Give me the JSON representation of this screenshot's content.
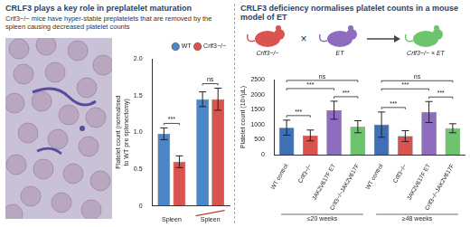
{
  "panels": [
    {
      "title": "CRLF3 plays a key role in preplatelet maturation",
      "subtitle": "Crlf3−/− mice have hyper-stable preplatelets that are removed by the spleen causing decreased platelet counts"
    },
    {
      "title": "CRLF3 deficiency normalises platelet counts in a mouse model of ET",
      "diagram": {
        "parents": [
          "Crlf3−/−",
          "ET"
        ],
        "cross": "×",
        "offspring": "Crlf3−/− × ET"
      }
    }
  ],
  "chart_data": [
    {
      "type": "bar",
      "categories": [
        "Spleen",
        "Spleen"
      ],
      "y_label": [
        "Platelet count (normalised",
        "to WT pre splenectomy)"
      ],
      "ylim": [
        0,
        2
      ],
      "yticks": [
        0,
        0.5,
        {
          "value": 1,
          "label": "1.0"
        },
        1.5,
        {
          "value": 2,
          "label": "2.0"
        }
      ],
      "grid": false,
      "legend": "top-right",
      "series": [
        {
          "name": "WT",
          "color": "#4a86c8",
          "values": [
            0.98,
            1.45
          ],
          "errors": [
            0.08,
            0.1
          ]
        },
        {
          "name": "Crlf3−/−",
          "color": "#d9534f",
          "values": [
            0.6,
            1.45
          ],
          "errors": [
            0.08,
            0.15
          ]
        }
      ],
      "annotations": [
        {
          "category": 0,
          "text": "***"
        },
        {
          "category": 1,
          "text": "ns"
        }
      ]
    },
    {
      "type": "bar",
      "categories": [
        "WT control",
        "Crlf3−/−",
        "JAK2V617F ET",
        "Crlf3−/−JAK2V617F",
        "WT control",
        "Crlf3−/−",
        "JAK2V617F ET",
        "Crlf3−/−JAK2V617F"
      ],
      "y_label": "Platelet count (10³/μL)",
      "ylim": [
        0,
        2500
      ],
      "yticks": [
        0,
        500,
        1000,
        1500,
        2000,
        2500
      ],
      "grid": false,
      "colors": [
        "#3f6fb5",
        "#d9534f",
        "#8e6cc0",
        "#6cc46c",
        "#3f6fb5",
        "#d9534f",
        "#8e6cc0",
        "#6cc46c"
      ],
      "values": [
        900,
        640,
        1480,
        930,
        1000,
        620,
        1420,
        880
      ],
      "errors": [
        250,
        180,
        300,
        200,
        420,
        180,
        350,
        150
      ],
      "groups": [
        {
          "label": "≤20 weeks",
          "from": 0,
          "to": 3
        },
        {
          "label": "≥48 weeks",
          "from": 4,
          "to": 7
        }
      ],
      "annotations": [
        {
          "from": 0,
          "to": 1,
          "text": "***"
        },
        {
          "from": 2,
          "to": 3,
          "text": "***"
        },
        {
          "from": 0,
          "to": 2,
          "text": "***"
        },
        {
          "from": 0,
          "to": 3,
          "text": "ns"
        },
        {
          "from": 4,
          "to": 5,
          "text": "***"
        },
        {
          "from": 6,
          "to": 7,
          "text": "***"
        },
        {
          "from": 4,
          "to": 6,
          "text": "***"
        },
        {
          "from": 4,
          "to": 7,
          "text": "ns"
        }
      ]
    }
  ]
}
